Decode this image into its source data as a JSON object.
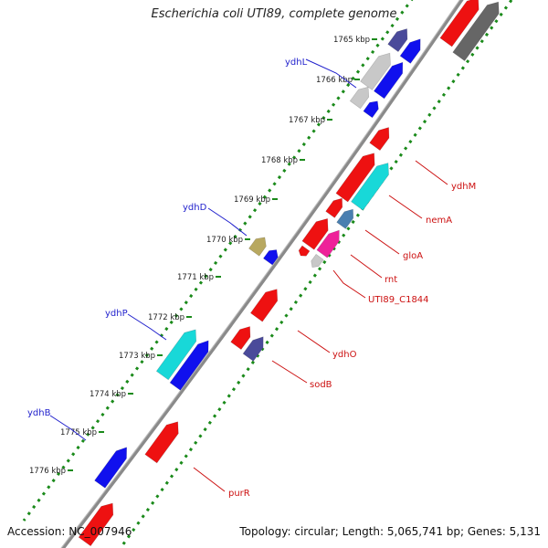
{
  "title": "Escherichia coli UTI89, complete genome",
  "footer": {
    "accession": "Accession: NC_007946",
    "summary": "Topology: circular; Length: 5,065,741 bp; Genes: 5,131"
  },
  "ticks": [
    "1765 kbp",
    "1766 kbp",
    "1767 kbp",
    "1768 kbp",
    "1769 kbp",
    "1770 kbp",
    "1771 kbp",
    "1772 kbp",
    "1773 kbp",
    "1774 kbp",
    "1775 kbp",
    "1776 kbp"
  ],
  "gene_labels": [
    "ydhL",
    "ydhD",
    "ydhP",
    "ydhB",
    "ydhM",
    "nemA",
    "gloA",
    "rnt",
    "UTI89_C1844",
    "ydhO",
    "sodB",
    "purR"
  ],
  "colors": {
    "backbone": "#8a8a8a",
    "tick_dots": "#1a8a1a",
    "left_label": "#1f1fcc",
    "right_label": "#cc1010",
    "red": "#ee1111",
    "blue": "#1010ee",
    "gray": "#666666",
    "lightgray": "#c8c8c8",
    "purple": "#4a4a9a",
    "cyan": "#18d8d8",
    "steel": "#4a7fb0",
    "pink": "#ee2299",
    "khaki": "#b8a860"
  }
}
